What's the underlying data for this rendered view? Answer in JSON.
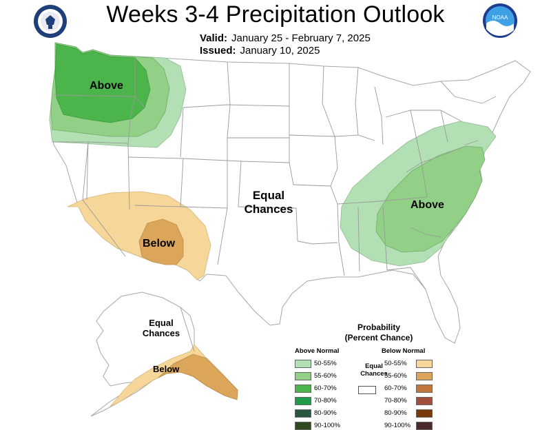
{
  "header": {
    "title": "Weeks 3-4 Precipitation Outlook",
    "valid_label": "Valid:",
    "valid_value": "January 25 - February 7, 2025",
    "issued_label": "Issued:",
    "issued_value": "January 10, 2025",
    "left_logo": "dept-of-commerce-seal",
    "right_logo": "NOAA",
    "noaa_text": "NOAA"
  },
  "map": {
    "labels": {
      "northwest": "Above",
      "southeast": "Above",
      "southwest": "Below",
      "center_line1": "Equal",
      "center_line2": "Chances",
      "alaska_line1": "Equal",
      "alaska_line2": "Chances",
      "alaska_below": "Below"
    }
  },
  "legend": {
    "title_line1": "Probability",
    "title_line2": "(Percent Chance)",
    "above_header": "Above Normal",
    "below_header": "Below Normal",
    "equal_line1": "Equal",
    "equal_line2": "Chances",
    "above": [
      {
        "label": "50-55%",
        "color": "#b2dfb3"
      },
      {
        "label": "55-60%",
        "color": "#92d087"
      },
      {
        "label": "60-70%",
        "color": "#4bb44b"
      },
      {
        "label": "70-80%",
        "color": "#1f9c4a"
      },
      {
        "label": "80-90%",
        "color": "#29553f"
      },
      {
        "label": "90-100%",
        "color": "#2f4a1f"
      }
    ],
    "below": [
      {
        "label": "50-55%",
        "color": "#f6d699"
      },
      {
        "label": "55-60%",
        "color": "#dba659"
      },
      {
        "label": "60-70%",
        "color": "#c2763a"
      },
      {
        "label": "70-80%",
        "color": "#a34d3d"
      },
      {
        "label": "80-90%",
        "color": "#7a3a10"
      },
      {
        "label": "90-100%",
        "color": "#4a2a2a"
      }
    ]
  },
  "colors": {
    "above_50": "#b2dfb3",
    "above_55": "#92d087",
    "above_60": "#4bb44b",
    "below_50": "#f6d699",
    "below_55": "#dba659",
    "state_line": "#9a9a9a"
  }
}
